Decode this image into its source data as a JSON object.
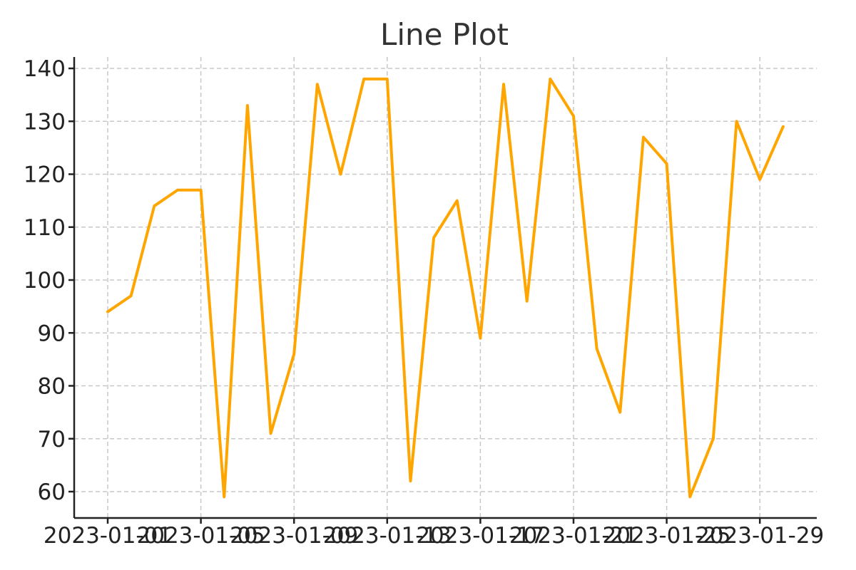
{
  "chart_data": {
    "type": "line",
    "title": "Line Plot",
    "xlabel": "",
    "ylabel": "",
    "grid": true,
    "x": [
      "2023-01-01",
      "2023-01-02",
      "2023-01-03",
      "2023-01-04",
      "2023-01-05",
      "2023-01-06",
      "2023-01-07",
      "2023-01-08",
      "2023-01-09",
      "2023-01-10",
      "2023-01-11",
      "2023-01-12",
      "2023-01-13",
      "2023-01-14",
      "2023-01-15",
      "2023-01-16",
      "2023-01-17",
      "2023-01-18",
      "2023-01-19",
      "2023-01-20",
      "2023-01-21",
      "2023-01-22",
      "2023-01-23",
      "2023-01-24",
      "2023-01-25",
      "2023-01-26",
      "2023-01-27",
      "2023-01-28",
      "2023-01-29",
      "2023-01-30"
    ],
    "series": [
      {
        "values": [
          94,
          97,
          114,
          117,
          117,
          59,
          133,
          71,
          86,
          137,
          120,
          138,
          138,
          62,
          108,
          115,
          89,
          137,
          96,
          138,
          131,
          87,
          75,
          127,
          122,
          59,
          70,
          130,
          119,
          129
        ]
      }
    ],
    "x_tick_labels": [
      "2023-01-01",
      "2023-01-05",
      "2023-01-09",
      "2023-01-13",
      "2023-01-17",
      "2023-01-21",
      "2023-01-25",
      "2023-01-29"
    ],
    "y_ticks": [
      60,
      70,
      80,
      90,
      100,
      110,
      120,
      130,
      140
    ],
    "ylim": [
      55,
      142
    ],
    "colors": {
      "line": "#FFA500",
      "grid": "#c8c8c8",
      "axis": "#222222"
    }
  }
}
